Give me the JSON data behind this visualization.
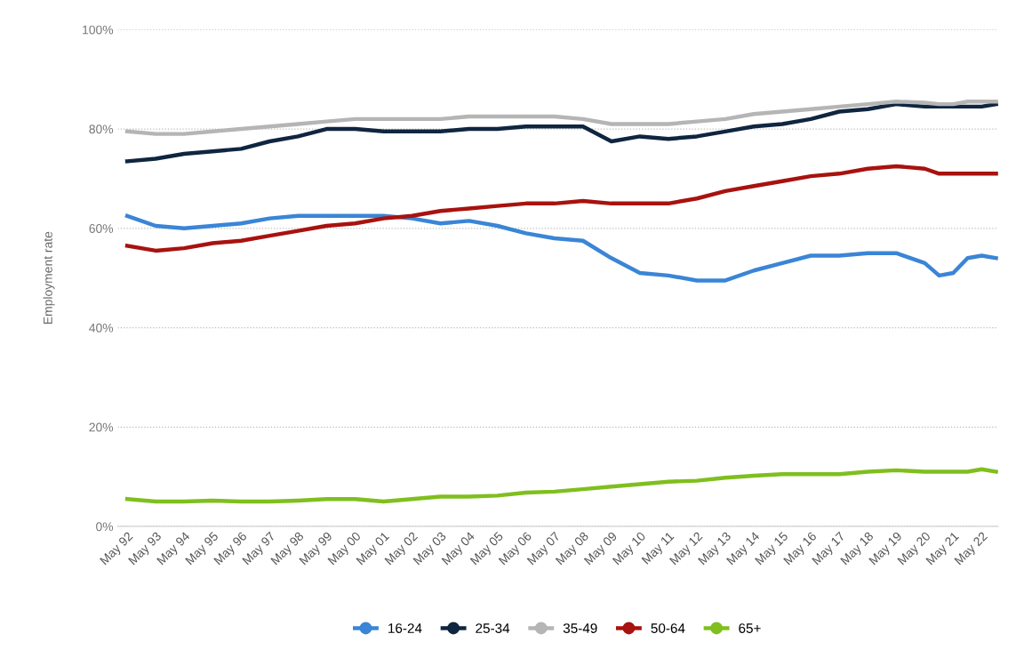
{
  "chart_data": {
    "type": "line",
    "ylabel": "Employment rate",
    "x": [
      "1992-05",
      "1993-05",
      "1994-05",
      "1995-05",
      "1996-05",
      "1997-05",
      "1998-05",
      "1999-05",
      "2000-05",
      "2001-05",
      "2002-05",
      "2003-05",
      "2004-05",
      "2005-05",
      "2006-05",
      "2007-05",
      "2008-05",
      "2009-05",
      "2010-05",
      "2011-05",
      "2012-05",
      "2013-05",
      "2014-05",
      "2015-05",
      "2016-05",
      "2017-05",
      "2018-05",
      "2019-05",
      "2020-05",
      "2020-11",
      "2021-05",
      "2021-11",
      "2022-05",
      "2022-11"
    ],
    "series": [
      {
        "name": "16-24",
        "color": "#3a85d6",
        "values": [
          62.5,
          60.5,
          60,
          60.5,
          61,
          62,
          62.5,
          62.5,
          62.5,
          62.5,
          62,
          61,
          61.5,
          60.5,
          59,
          58,
          57.5,
          54,
          51,
          50.5,
          49.5,
          49.5,
          51.5,
          53,
          54.5,
          54.5,
          55,
          55,
          53,
          50.5,
          51,
          54,
          54.5,
          54
        ]
      },
      {
        "name": "25-34",
        "color": "#0f2540",
        "values": [
          73.5,
          74,
          75,
          75.5,
          76,
          77.5,
          78.5,
          80,
          80,
          79.5,
          79.5,
          79.5,
          80,
          80,
          80.5,
          80.5,
          80.5,
          77.5,
          78.5,
          78,
          78.5,
          79.5,
          80.5,
          81,
          82,
          83.5,
          84,
          85,
          84.5,
          84.5,
          84.5,
          84.5,
          84.5,
          85
        ]
      },
      {
        "name": "35-49",
        "color": "#b5b5b5",
        "values": [
          79.5,
          79,
          79,
          79.5,
          80,
          80.5,
          81,
          81.5,
          82,
          82,
          82,
          82,
          82.5,
          82.5,
          82.5,
          82.5,
          82,
          81,
          81,
          81,
          81.5,
          82,
          83,
          83.5,
          84,
          84.5,
          85,
          85.5,
          85.3,
          85,
          85,
          85.5,
          85.5,
          85.5
        ]
      },
      {
        "name": "50-64",
        "color": "#a8120f",
        "values": [
          56.5,
          55.5,
          56,
          57,
          57.5,
          58.5,
          59.5,
          60.5,
          61,
          62,
          62.5,
          63.5,
          64,
          64.5,
          65,
          65,
          65.5,
          65,
          65,
          65,
          66,
          67.5,
          68.5,
          69.5,
          70.5,
          71,
          72,
          72.5,
          72,
          71,
          71,
          71,
          71,
          71
        ]
      },
      {
        "name": "65+",
        "color": "#7fbf1e",
        "values": [
          5.5,
          5,
          5,
          5.2,
          5,
          5,
          5.2,
          5.5,
          5.5,
          5,
          5.5,
          6,
          6,
          6.2,
          6.8,
          7,
          7.5,
          8,
          8.5,
          9,
          9.2,
          9.8,
          10.2,
          10.5,
          10.5,
          10.5,
          11,
          11.3,
          11,
          11,
          11,
          11,
          11.5,
          11
        ]
      }
    ],
    "xlim": [
      "1992-01",
      "2022-12"
    ],
    "xticks": [
      {
        "value": "1992-05",
        "label": "May 92"
      },
      {
        "value": "1993-05",
        "label": "May 93"
      },
      {
        "value": "1994-05",
        "label": "May 94"
      },
      {
        "value": "1995-05",
        "label": "May 95"
      },
      {
        "value": "1996-05",
        "label": "May 96"
      },
      {
        "value": "1997-05",
        "label": "May 97"
      },
      {
        "value": "1998-05",
        "label": "May 98"
      },
      {
        "value": "1999-05",
        "label": "May 99"
      },
      {
        "value": "2000-05",
        "label": "May 00"
      },
      {
        "value": "2001-05",
        "label": "May 01"
      },
      {
        "value": "2002-05",
        "label": "May 02"
      },
      {
        "value": "2003-05",
        "label": "May 03"
      },
      {
        "value": "2004-05",
        "label": "May 04"
      },
      {
        "value": "2005-05",
        "label": "May 05"
      },
      {
        "value": "2006-05",
        "label": "May 06"
      },
      {
        "value": "2007-05",
        "label": "May 07"
      },
      {
        "value": "2008-05",
        "label": "May 08"
      },
      {
        "value": "2009-05",
        "label": "May 09"
      },
      {
        "value": "2010-05",
        "label": "May 10"
      },
      {
        "value": "2011-05",
        "label": "May 11"
      },
      {
        "value": "2012-05",
        "label": "May 12"
      },
      {
        "value": "2013-05",
        "label": "May 13"
      },
      {
        "value": "2014-05",
        "label": "May 14"
      },
      {
        "value": "2015-05",
        "label": "May 15"
      },
      {
        "value": "2016-05",
        "label": "May 16"
      },
      {
        "value": "2017-05",
        "label": "May 17"
      },
      {
        "value": "2018-05",
        "label": "May 18"
      },
      {
        "value": "2019-05",
        "label": "May 19"
      },
      {
        "value": "2020-05",
        "label": "May 20"
      },
      {
        "value": "2021-05",
        "label": "May 21"
      },
      {
        "value": "2022-05",
        "label": "May 22"
      }
    ],
    "ylim": [
      0,
      100
    ],
    "yticks": [
      {
        "value": 0,
        "label": "0%"
      },
      {
        "value": 20,
        "label": "20%"
      },
      {
        "value": 40,
        "label": "40%"
      },
      {
        "value": 60,
        "label": "60%"
      },
      {
        "value": 80,
        "label": "80%"
      },
      {
        "value": 100,
        "label": "100%"
      }
    ],
    "grid": "y",
    "legend": "bottom",
    "marker": "none",
    "line_style": "solid"
  }
}
